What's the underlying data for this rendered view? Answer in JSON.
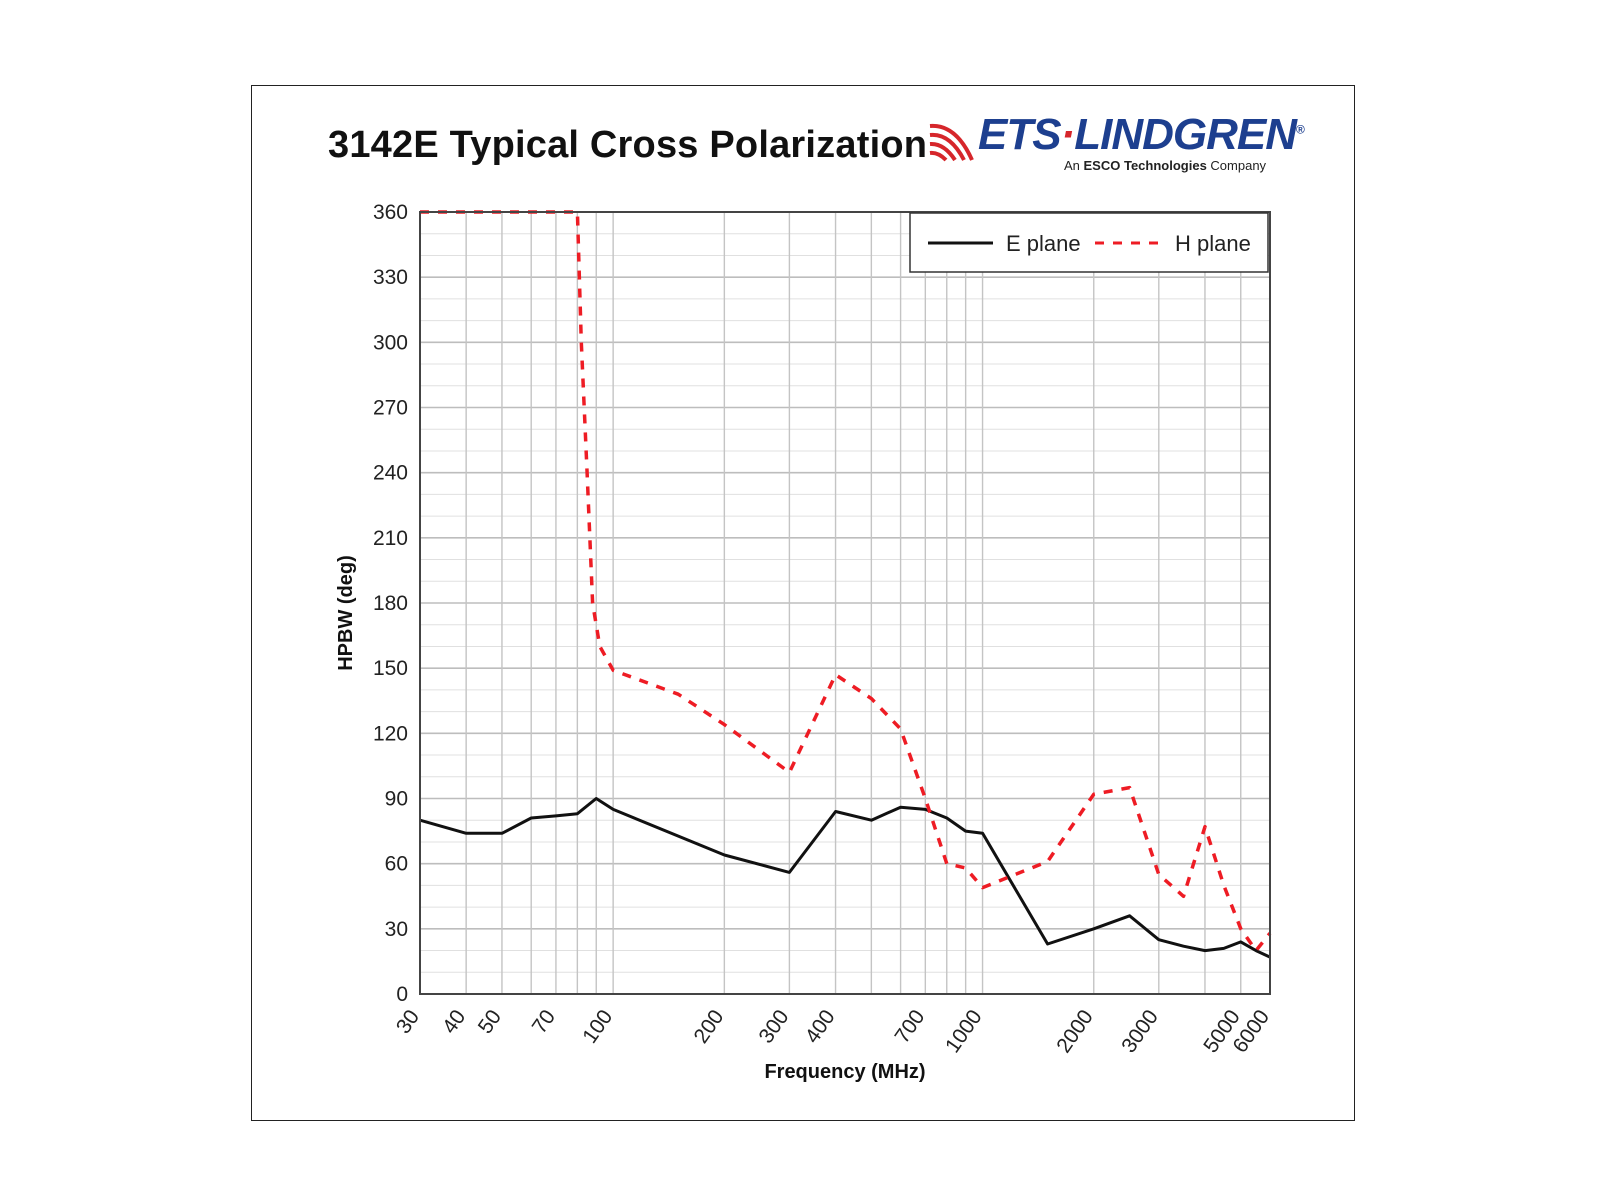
{
  "colors": {
    "e_plane": "#111111",
    "h_plane": "#ee1c24",
    "grid": "#c9c9c9",
    "logo_blue": "#1d3f8f",
    "logo_red": "#d6262b"
  },
  "logo": {
    "icon": "ets-wave-icon",
    "word_left": "ETS",
    "word_right": "LINDGREN",
    "registered": "®",
    "sub_prefix": "An ",
    "sub_bold": "ESCO Technologies",
    "sub_suffix": " Company"
  },
  "chart_data": {
    "type": "line",
    "title": "3142E Typical Cross Polarization",
    "xlabel": "Frequency (MHz)",
    "ylabel": "HPBW (deg)",
    "xscale": "log",
    "xlim": [
      30,
      6000
    ],
    "ylim": [
      0,
      360
    ],
    "xticks": [
      30,
      40,
      50,
      70,
      100,
      200,
      300,
      400,
      700,
      1000,
      2000,
      3000,
      5000,
      6000
    ],
    "xtick_labels": [
      "30",
      "40",
      "50",
      "70",
      "100",
      "200",
      "300",
      "400",
      "700",
      "1000",
      "2000",
      "3000",
      "5000",
      "6000"
    ],
    "xgrid_minor": [
      60,
      80,
      90,
      500,
      600,
      800,
      900,
      4000
    ],
    "yticks": [
      0,
      30,
      60,
      90,
      120,
      150,
      180,
      210,
      240,
      270,
      300,
      330,
      360
    ],
    "grid": true,
    "legend_position": "top-right",
    "series": [
      {
        "name": "E plane",
        "style": "solid",
        "x": [
          30,
          40,
          50,
          60,
          70,
          80,
          90,
          100,
          200,
          300,
          400,
          500,
          600,
          700,
          800,
          900,
          1000,
          1500,
          2000,
          2500,
          3000,
          3500,
          4000,
          4500,
          5000,
          5500,
          6000
        ],
        "y": [
          80,
          74,
          74,
          81,
          82,
          83,
          90,
          85,
          64,
          56,
          84,
          80,
          86,
          85,
          81,
          75,
          74,
          23,
          30,
          36,
          25,
          22,
          20,
          21,
          24,
          20,
          17
        ]
      },
      {
        "name": "H plane",
        "style": "dashed",
        "x": [
          30,
          80,
          82,
          85,
          88,
          92,
          100,
          150,
          200,
          300,
          400,
          500,
          600,
          700,
          800,
          900,
          1000,
          1500,
          2000,
          2500,
          3000,
          3500,
          4000,
          4500,
          5000,
          5500,
          6000
        ],
        "y": [
          360,
          360,
          300,
          240,
          180,
          160,
          149,
          138,
          124,
          102,
          147,
          136,
          122,
          90,
          60,
          58,
          49,
          61,
          92,
          95,
          55,
          45,
          77,
          50,
          30,
          20,
          28
        ]
      }
    ]
  }
}
